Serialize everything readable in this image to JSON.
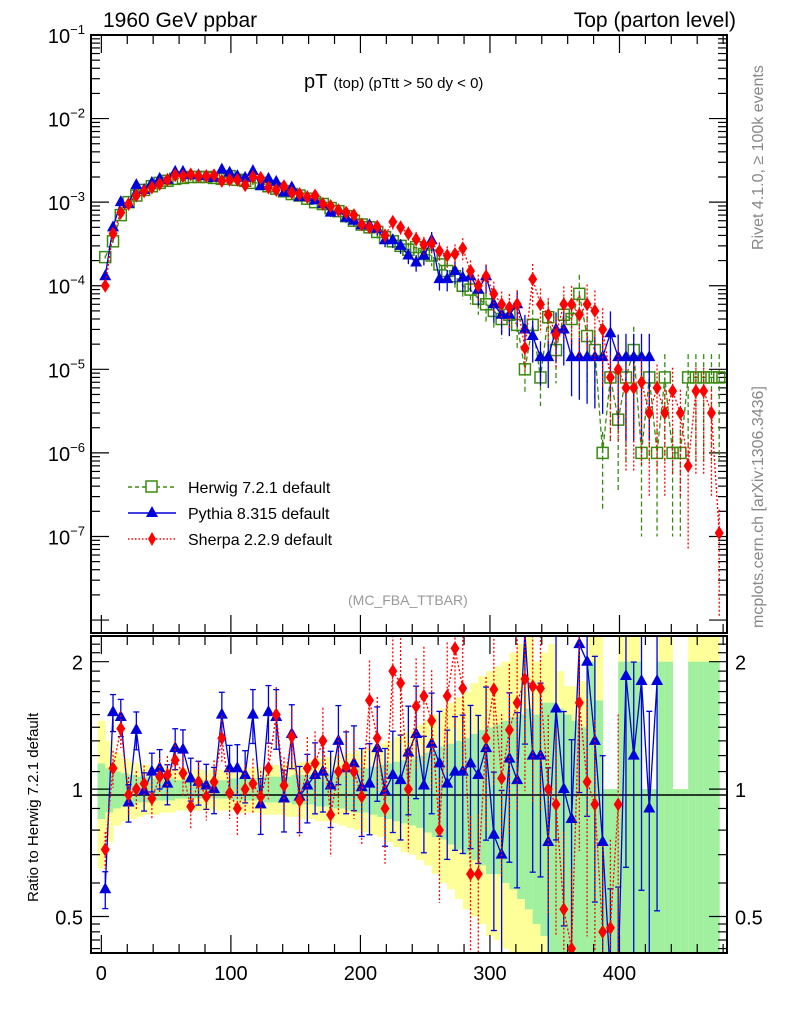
{
  "header": {
    "left_label": "1960 GeV ppbar",
    "right_label": "Top (parton level)"
  },
  "side_labels": {
    "rivet": "Rivet 4.1.0, ≥ 100k events",
    "mcplots": "mcplots.cern.ch [arXiv:1306.3436]"
  },
  "colors": {
    "herwig": "#3a8a10",
    "pythia": "#0000dd",
    "sherpa": "#ff0000",
    "band_inner": "#a0f0a0",
    "band_outer": "#ffff99"
  },
  "chart_data": [
    {
      "type": "line",
      "title_main": "pT",
      "title_sub": "(top) (pTtt > 50 dy < 0)",
      "analysis_label": "(MC_FBA_TTBAR)",
      "xlabel": "",
      "ylabel": "",
      "yscale": "log",
      "xlim": [
        -8,
        483
      ],
      "ylim": [
        7e-09,
        0.1
      ],
      "yticks": [
        {
          "v": 0.1,
          "base": "10",
          "exp": "−1"
        },
        {
          "v": 0.01,
          "base": "10",
          "exp": "−2"
        },
        {
          "v": 0.001,
          "base": "10",
          "exp": "−3"
        },
        {
          "v": 0.0001,
          "base": "10",
          "exp": "−4"
        },
        {
          "v": 1e-05,
          "base": "10",
          "exp": "−5"
        },
        {
          "v": 1e-06,
          "base": "10",
          "exp": "−6"
        },
        {
          "v": 1e-07,
          "base": "10",
          "exp": "−7"
        }
      ],
      "legend": {
        "placement": "bottom-left",
        "entries": [
          "Herwig 7.2.1 default",
          "Pythia 8.315 default",
          "Sherpa 2.2.9 default"
        ]
      },
      "x": [
        3,
        9,
        15,
        21,
        27,
        33,
        39,
        45,
        51,
        57,
        63,
        69,
        75,
        81,
        87,
        93,
        99,
        105,
        111,
        117,
        123,
        129,
        135,
        141,
        147,
        153,
        159,
        165,
        171,
        177,
        183,
        189,
        195,
        201,
        207,
        213,
        219,
        225,
        231,
        237,
        243,
        249,
        255,
        261,
        267,
        273,
        279,
        285,
        291,
        297,
        303,
        309,
        315,
        321,
        327,
        333,
        339,
        345,
        351,
        357,
        363,
        369,
        375,
        381,
        387,
        393,
        399,
        405,
        411,
        417,
        423,
        429,
        435,
        441,
        447,
        453,
        459,
        465,
        471,
        477
      ],
      "series": [
        {
          "name": "Herwig 7.2.1 default",
          "marker": "open-square",
          "linestyle": "dashed",
          "values": [
            0.00022,
            0.00034,
            0.0007,
            0.001,
            0.0012,
            0.0014,
            0.00155,
            0.0017,
            0.0018,
            0.0019,
            0.00195,
            0.002,
            0.002,
            0.002,
            0.00195,
            0.0019,
            0.00205,
            0.00185,
            0.0018,
            0.0017,
            0.0017,
            0.00155,
            0.00145,
            0.00135,
            0.00125,
            0.0012,
            0.0011,
            0.001,
            0.00095,
            0.00085,
            0.00078,
            0.00068,
            0.0006,
            0.00054,
            0.0005,
            0.00044,
            0.00038,
            0.00034,
            0.0003,
            0.00027,
            0.00029,
            0.00024,
            0.00023,
            0.00018,
            0.00015,
            0.00013,
            0.0001,
            9e-05,
            7e-05,
            6e-05,
            5e-05,
            4e-05,
            4.5e-05,
            3.4e-05,
            1e-05,
            3.4e-05,
            8e-06,
            4.2e-05,
            1.7e-05,
            4.5e-05,
            4e-05,
            8e-05,
            2.5e-05,
            1.7e-05,
            1e-06,
            8e-06,
            2.5e-06,
            8e-06,
            1.7e-05,
            1e-06,
            8e-06,
            1e-06,
            8e-06,
            1e-06,
            1e-06,
            8e-06,
            8e-06,
            8e-06,
            8e-06,
            8e-06
          ],
          "ratio_values": [
            1,
            1,
            1,
            1,
            1,
            1,
            1,
            1,
            1,
            1,
            1,
            1,
            1,
            1,
            1,
            1,
            1,
            1,
            1,
            1,
            1,
            1,
            1,
            1,
            1,
            1,
            1,
            1,
            1,
            1,
            1,
            1,
            1,
            1,
            1,
            1,
            1,
            1,
            1,
            1,
            1,
            1,
            1,
            1,
            1,
            1,
            1,
            1,
            1,
            1,
            1,
            1,
            1,
            1,
            1,
            1,
            1,
            1,
            1,
            1,
            1,
            1,
            1,
            1,
            1,
            1,
            1,
            1,
            1,
            1,
            1,
            1,
            1,
            1,
            1,
            1,
            1,
            1,
            1,
            1
          ]
        },
        {
          "name": "Pythia 8.315 default",
          "marker": "filled-triangle",
          "linestyle": "solid",
          "values": [
            0.00013,
            0.0005,
            0.001,
            0.00095,
            0.0016,
            0.0014,
            0.0017,
            0.0019,
            0.00185,
            0.0023,
            0.0023,
            0.0021,
            0.0021,
            0.00205,
            0.00195,
            0.00245,
            0.00225,
            0.00205,
            0.00195,
            0.00235,
            0.00155,
            0.0019,
            0.00175,
            0.0013,
            0.0015,
            0.00115,
            0.00115,
            0.00105,
            0.00095,
            0.00075,
            0.0008,
            0.00065,
            0.0006,
            0.00053,
            0.00053,
            0.00048,
            0.00035,
            0.00035,
            0.0003,
            0.00023,
            0.00019,
            0.00023,
            0.00035,
            0.00012,
            0.00012,
            0.00015,
            0.000125,
            0.00013,
            9e-05,
            0.00013,
            6e-05,
            4.5e-05,
            4.5e-05,
            6e-05,
            3e-05,
            2.5e-05,
            1.4e-05,
            1.4e-05,
            3e-05,
            3e-05,
            1.4e-05,
            1.4e-05,
            1.4e-05,
            1.4e-05,
            1.4e-05,
            2.7e-05,
            1.4e-05,
            1.4e-05,
            1.4e-05,
            1.4e-05,
            1.4e-05,
            null,
            null,
            null,
            null,
            null,
            null,
            null,
            null,
            null
          ],
          "ratio_values": [
            0.58,
            1.52,
            1.48,
            0.93,
            1.38,
            0.99,
            1.1,
            1.12,
            1.03,
            1.25,
            1.24,
            1.06,
            1.04,
            1.02,
            1.0,
            1.5,
            1.12,
            1.12,
            1.08,
            1.5,
            0.92,
            1.52,
            1.48,
            0.95,
            1.35,
            0.96,
            1.02,
            1.08,
            1.1,
            1.02,
            1.3,
            1.12,
            1.15,
            1.01,
            1.03,
            1.25,
            0.99,
            1.08,
            1.05,
            1.22,
            1.35,
            1.02,
            1.28,
            1.15,
            1.03,
            1.1,
            1.1,
            1.15,
            1.08,
            1.25,
            0.78,
            0.7,
            1.18,
            1.05,
            2.35,
            1.2,
            1.2,
            0.75,
            1.55,
            1.0,
            0.85,
            2.2,
            2.0,
            1.3,
            0.75,
            0.36,
            0.36,
            1.85,
            1.2,
            1.8,
            0.9,
            1.8,
            null,
            null,
            null,
            null,
            null,
            null,
            null,
            null
          ]
        },
        {
          "name": "Sherpa 2.2.9 default",
          "marker": "filled-diamond",
          "linestyle": "dotted",
          "values": [
            0.0001,
            0.00042,
            0.00075,
            0.00095,
            0.0012,
            0.00135,
            0.0015,
            0.00165,
            0.00185,
            0.0021,
            0.00205,
            0.00215,
            0.00205,
            0.00205,
            0.0021,
            0.0018,
            0.00185,
            0.00185,
            0.0016,
            0.002,
            0.00195,
            0.0015,
            0.0014,
            0.00155,
            0.0013,
            0.00125,
            0.00115,
            0.0012,
            0.00095,
            0.0009,
            0.0008,
            0.00075,
            0.0007,
            0.00054,
            0.0005,
            0.00051,
            0.0004,
            0.00058,
            0.0005,
            0.00042,
            0.00036,
            0.00031,
            0.00032,
            0.00026,
            0.00023,
            0.00024,
            0.00028,
            0.00015,
            0.0001,
            0.00013,
            8e-05,
            6e-05,
            5.5e-05,
            6e-05,
            1.8e-05,
            0.00012,
            6e-05,
            4.5e-05,
            2.6e-05,
            6e-05,
            6e-05,
            4.5e-05,
            6e-05,
            5e-05,
            3e-05,
            8e-06,
            1e-05,
            6e-06,
            6e-06,
            7e-06,
            3e-06,
            6e-06,
            3e-06,
            5.5e-06,
            3e-06,
            7e-07,
            5.5e-06,
            5.5e-06,
            3e-06,
            1.1e-07
          ],
          "ratio_values": [
            0.72,
            1.12,
            1.39,
            0.97,
            1.0,
            1.03,
            0.95,
            1.07,
            1.08,
            1.17,
            1.09,
            0.91,
            1.04,
            0.96,
            1.04,
            1.32,
            0.98,
            0.9,
            1.0,
            1.03,
            0.96,
            1.12,
            1.5,
            1.02,
            1.33,
            0.94,
            1.12,
            1.15,
            1.3,
            0.87,
            1.1,
            1.13,
            1.1,
            0.96,
            1.62,
            1.32,
            0.9,
            1.9,
            1.78,
            1.0,
            1.57,
            1.66,
            1.45,
            0.8,
            1.66,
            2.15,
            1.73,
            0.63,
            0.63,
            1.32,
            1.72,
            1.06,
            1.38,
            1.6,
            1.82,
            1.75,
            1.73,
            1.0,
            0.92,
            0.52,
            0.42,
            1.6,
            1.04,
            0.92,
            0.46,
            0.47,
            0.92,
            null,
            null,
            null,
            null,
            null,
            null,
            null,
            null,
            null,
            null,
            null,
            null,
            null
          ]
        }
      ]
    },
    {
      "type": "area",
      "ylabel": "Ratio to Herwig 7.2.1 default",
      "xlabel": "",
      "yscale": "log",
      "xlim": [
        -8,
        483
      ],
      "ylim": [
        0.41,
        2.3
      ],
      "reference_line": 1,
      "yticks": [
        "0.5",
        "1",
        "2"
      ],
      "xticks": [
        "0",
        "100",
        "200",
        "300",
        "400"
      ],
      "band_x": [
        0,
        6,
        12,
        18,
        24,
        30,
        36,
        42,
        48,
        54,
        60,
        66,
        72,
        78,
        84,
        90,
        96,
        102,
        108,
        114,
        120,
        126,
        132,
        138,
        144,
        150,
        156,
        162,
        168,
        174,
        180,
        186,
        192,
        198,
        204,
        210,
        216,
        222,
        228,
        234,
        240,
        246,
        252,
        258,
        264,
        270,
        276,
        282,
        288,
        294,
        300,
        306,
        312,
        318,
        324,
        330,
        336,
        342,
        348,
        354,
        360,
        366,
        372,
        378,
        384,
        390,
        396,
        402,
        408,
        414,
        420,
        426,
        432,
        438,
        444,
        450,
        456,
        462,
        468,
        474,
        480
      ],
      "band_inner_lo": [
        0.85,
        0.88,
        0.9,
        0.91,
        0.92,
        0.93,
        0.93,
        0.94,
        0.94,
        0.94,
        0.95,
        0.95,
        0.95,
        0.95,
        0.95,
        0.95,
        0.95,
        0.94,
        0.94,
        0.94,
        0.94,
        0.93,
        0.93,
        0.93,
        0.93,
        0.92,
        0.92,
        0.92,
        0.91,
        0.91,
        0.9,
        0.9,
        0.89,
        0.88,
        0.88,
        0.87,
        0.86,
        0.85,
        0.84,
        0.83,
        0.82,
        0.81,
        0.79,
        0.77,
        0.76,
        0.74,
        0.72,
        0.7,
        0.68,
        0.66,
        0.63,
        0.63,
        0.6,
        0.58,
        0.55,
        0.52,
        0.48,
        0.45,
        0.41,
        0.41,
        0.41,
        0.41,
        0.41,
        0.41,
        0.41,
        0.41,
        0.41,
        0.41,
        0.41,
        0.41,
        0.41,
        0.41,
        0.41,
        0.41,
        0.41,
        0.41,
        0.41,
        0.41,
        0.41,
        0.41
      ],
      "band_inner_hi": [
        1.15,
        1.12,
        1.1,
        1.09,
        1.08,
        1.07,
        1.07,
        1.06,
        1.06,
        1.06,
        1.05,
        1.05,
        1.05,
        1.05,
        1.05,
        1.05,
        1.05,
        1.06,
        1.06,
        1.06,
        1.06,
        1.07,
        1.07,
        1.07,
        1.07,
        1.08,
        1.08,
        1.08,
        1.09,
        1.09,
        1.1,
        1.1,
        1.11,
        1.12,
        1.12,
        1.13,
        1.14,
        1.15,
        1.16,
        1.17,
        1.18,
        1.2,
        1.22,
        1.24,
        1.26,
        1.28,
        1.3,
        1.32,
        1.35,
        1.38,
        1.4,
        1.42,
        1.45,
        1.48,
        1.5,
        1.55,
        1.5,
        1.6,
        1.6,
        1.55,
        1.5,
        1.45,
        1.4,
        2.0,
        1.62,
        1.0,
        1.0,
        2.0,
        2.0,
        2.0,
        1.0,
        1.0,
        2.0,
        2.0,
        1.0,
        1.0,
        2.0,
        2.0,
        2.0,
        2.0
      ],
      "band_outer_lo": [
        0.65,
        0.75,
        0.82,
        0.84,
        0.85,
        0.86,
        0.87,
        0.87,
        0.88,
        0.88,
        0.89,
        0.89,
        0.89,
        0.89,
        0.89,
        0.89,
        0.89,
        0.89,
        0.88,
        0.88,
        0.88,
        0.87,
        0.87,
        0.87,
        0.86,
        0.86,
        0.85,
        0.85,
        0.84,
        0.84,
        0.83,
        0.82,
        0.81,
        0.8,
        0.79,
        0.78,
        0.77,
        0.75,
        0.73,
        0.71,
        0.7,
        0.68,
        0.66,
        0.63,
        0.6,
        0.58,
        0.55,
        0.52,
        0.5,
        0.48,
        0.45,
        0.44,
        0.42,
        0.41,
        0.41,
        0.41,
        0.41,
        0.41,
        0.41,
        0.41,
        0.41,
        0.41,
        0.41,
        0.41,
        0.41,
        0.41,
        0.41,
        0.41,
        0.41,
        0.41,
        0.41,
        0.41,
        0.41,
        0.41,
        0.41,
        0.41,
        0.41,
        0.41,
        0.41,
        0.41
      ],
      "band_outer_hi": [
        1.45,
        1.3,
        1.22,
        1.18,
        1.16,
        1.15,
        1.14,
        1.13,
        1.13,
        1.12,
        1.12,
        1.12,
        1.11,
        1.11,
        1.11,
        1.11,
        1.11,
        1.12,
        1.12,
        1.12,
        1.13,
        1.13,
        1.14,
        1.14,
        1.15,
        1.15,
        1.16,
        1.17,
        1.18,
        1.19,
        1.2,
        1.21,
        1.22,
        1.23,
        1.25,
        1.26,
        1.28,
        1.3,
        1.33,
        1.36,
        1.38,
        1.42,
        1.45,
        1.5,
        1.55,
        1.6,
        1.65,
        1.7,
        1.78,
        1.85,
        1.9,
        1.95,
        2.0,
        2.1,
        2.2,
        2.3,
        2.0,
        2.1,
        2.2,
        1.9,
        1.75,
        1.75,
        1.8,
        2.3,
        2.3,
        1.0,
        1.0,
        2.3,
        2.3,
        2.3,
        1.0,
        1.0,
        2.3,
        2.3,
        1.0,
        1.0,
        2.3,
        2.3,
        2.3,
        2.3
      ]
    }
  ]
}
